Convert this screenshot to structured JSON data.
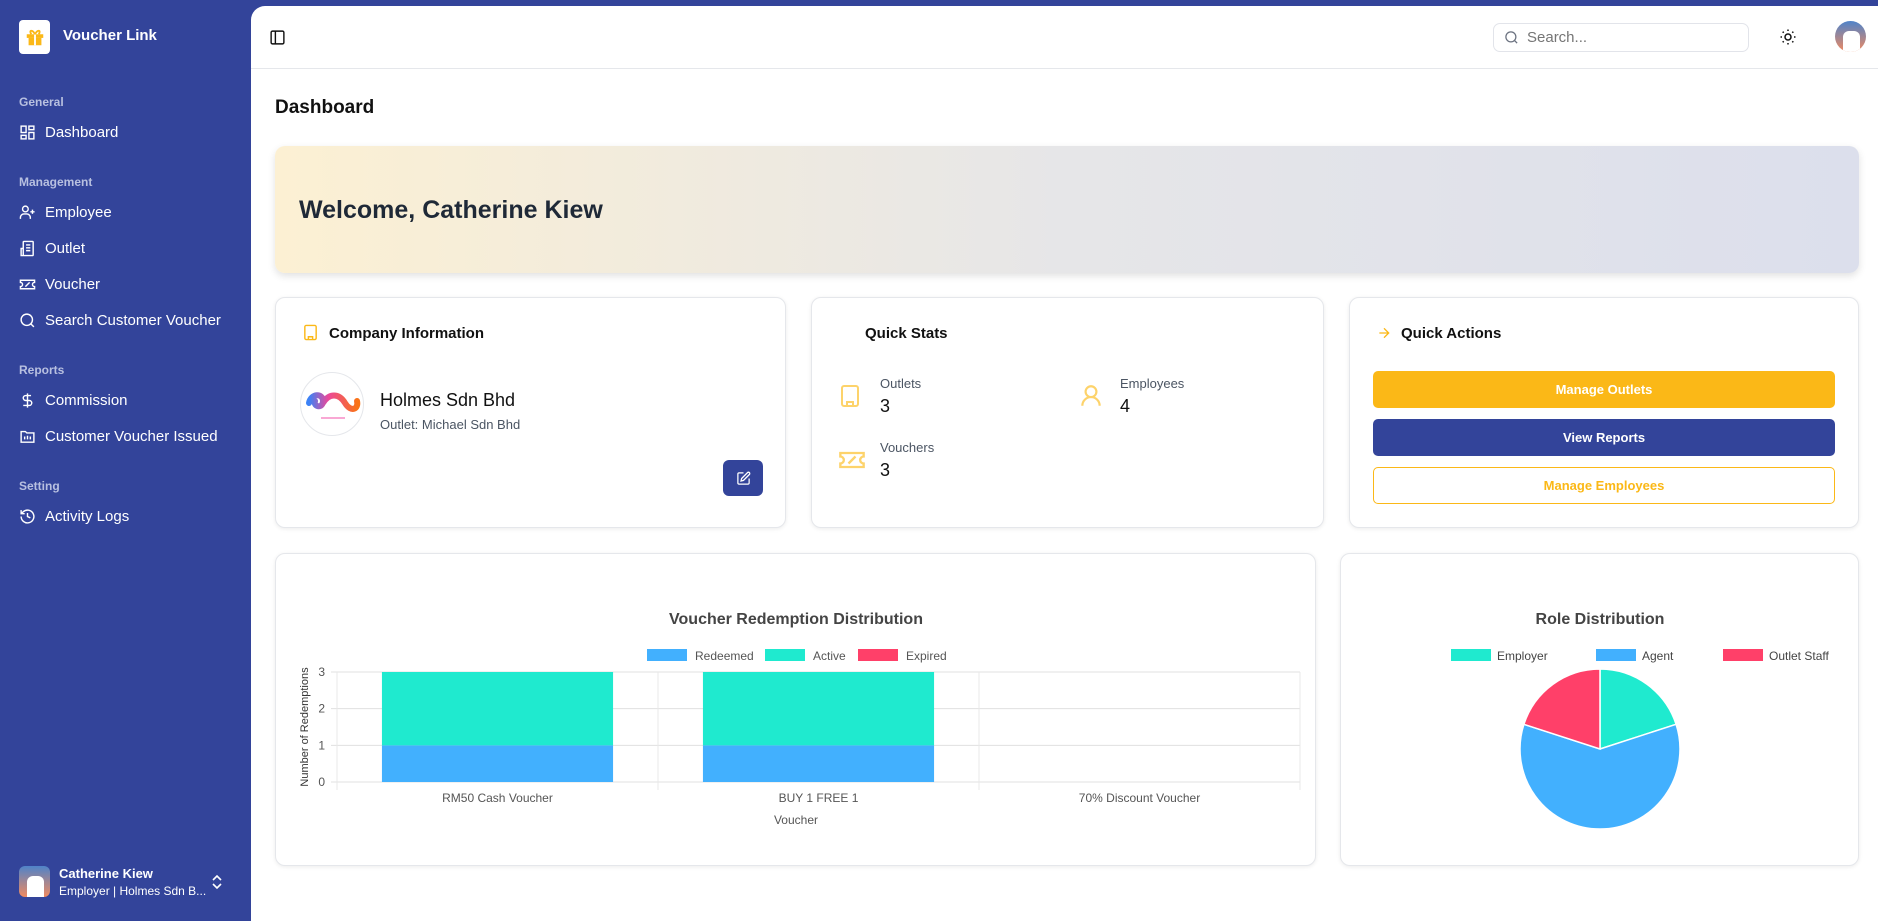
{
  "app": {
    "name": "Voucher Link"
  },
  "sidebar": {
    "sections": [
      {
        "label": "General",
        "items": [
          {
            "label": "Dashboard",
            "icon": "dashboard-icon"
          }
        ]
      },
      {
        "label": "Management",
        "items": [
          {
            "label": "Employee",
            "icon": "user-plus-icon"
          },
          {
            "label": "Outlet",
            "icon": "building-icon"
          },
          {
            "label": "Voucher",
            "icon": "ticket-icon"
          },
          {
            "label": "Search Customer Voucher",
            "icon": "search-icon"
          }
        ]
      },
      {
        "label": "Reports",
        "items": [
          {
            "label": "Commission",
            "icon": "dollar-icon"
          },
          {
            "label": "Customer Voucher Issued",
            "icon": "folder-chart-icon"
          }
        ]
      },
      {
        "label": "Setting",
        "items": [
          {
            "label": "Activity Logs",
            "icon": "history-icon"
          }
        ]
      }
    ],
    "user": {
      "name": "Catherine Kiew",
      "subtitle": "Employer | Holmes Sdn B..."
    }
  },
  "header": {
    "search_placeholder": "Search..."
  },
  "page": {
    "title": "Dashboard",
    "welcome": "Welcome, Catherine Kiew"
  },
  "company": {
    "title": "Company Information",
    "name": "Holmes Sdn Bhd",
    "outlet": "Outlet: Michael Sdn Bhd"
  },
  "stats": {
    "title": "Quick Stats",
    "items": [
      {
        "label": "Outlets",
        "value": "3"
      },
      {
        "label": "Employees",
        "value": "4"
      },
      {
        "label": "Vouchers",
        "value": "3"
      }
    ]
  },
  "actions": {
    "title": "Quick Actions",
    "buttons": [
      "Manage Outlets",
      "View Reports",
      "Manage Employees"
    ]
  },
  "colors": {
    "primary": "#33449a",
    "accent": "#fbb817",
    "redeemed": "#42b0fe",
    "active": "#1feacf",
    "expired": "#ff4069"
  },
  "chart_data": [
    {
      "type": "bar",
      "stacked": true,
      "title": "Voucher Redemption Distribution",
      "xlabel": "Voucher",
      "ylabel": "Number of Redemptions",
      "ylim": [
        0,
        3
      ],
      "yticks": [
        "0",
        "1",
        "2",
        "3"
      ],
      "categories": [
        "RM50 Cash Voucher",
        "BUY 1 FREE 1",
        "70% Discount Voucher"
      ],
      "series": [
        {
          "name": "Redeemed",
          "values": [
            1,
            1,
            0
          ]
        },
        {
          "name": "Active",
          "values": [
            2,
            2,
            0
          ]
        },
        {
          "name": "Expired",
          "values": [
            0,
            0,
            0
          ]
        }
      ],
      "legend": "top"
    },
    {
      "type": "pie",
      "title": "Role Distribution",
      "labels": [
        "Employer",
        "Agent",
        "Outlet Staff"
      ],
      "values": [
        1,
        3,
        1
      ],
      "legend": "top"
    }
  ]
}
